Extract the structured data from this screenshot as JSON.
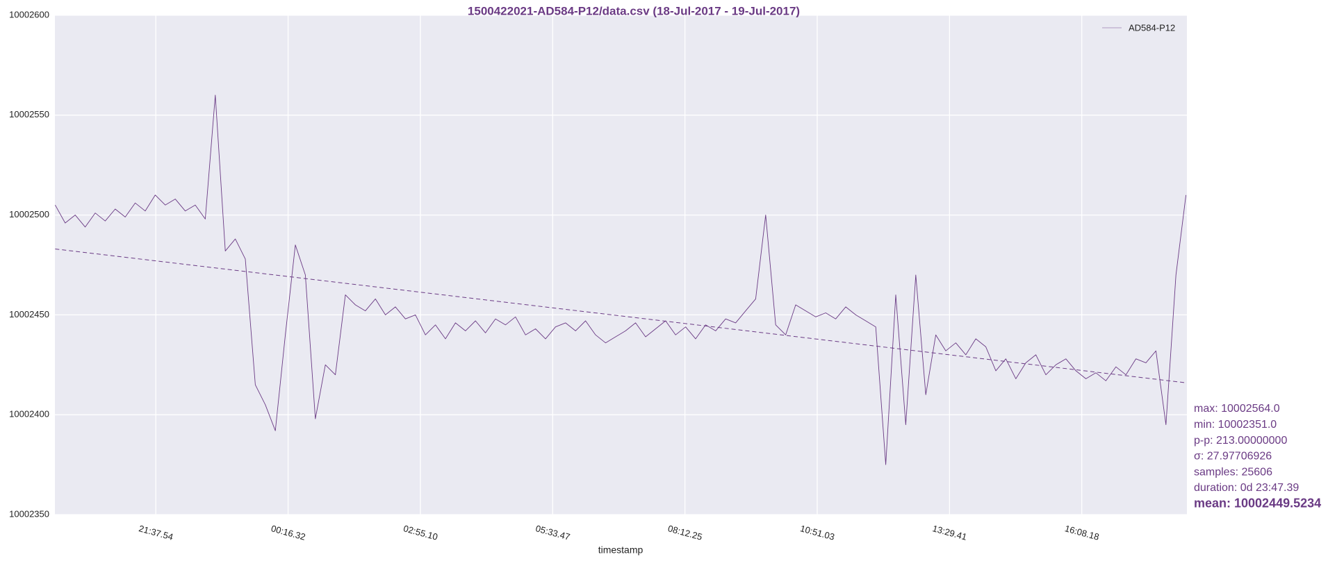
{
  "chart_data": {
    "type": "line",
    "title": "1500422021-AD584-P12/data.csv (18-Jul-2017 - 19-Jul-2017)",
    "x_label": "timestamp",
    "x": [
      19.62,
      19.82,
      20.02,
      20.22,
      20.42,
      20.62,
      20.82,
      21.02,
      21.22,
      21.42,
      21.62,
      21.82,
      22.02,
      22.22,
      22.42,
      22.62,
      22.82,
      23.02,
      23.22,
      23.42,
      23.62,
      23.82,
      24.02,
      24.22,
      24.42,
      24.62,
      24.82,
      25.02,
      25.22,
      25.42,
      25.62,
      25.82,
      26.02,
      26.22,
      26.42,
      26.62,
      26.82,
      27.02,
      27.22,
      27.42,
      27.62,
      27.82,
      28.02,
      28.22,
      28.42,
      28.62,
      28.82,
      29.02,
      29.22,
      29.42,
      29.62,
      29.82,
      30.02,
      30.22,
      30.42,
      30.62,
      30.82,
      31.02,
      31.22,
      31.42,
      31.62,
      31.82,
      32.02,
      32.22,
      32.42,
      32.62,
      32.82,
      33.02,
      33.22,
      33.42,
      33.62,
      33.82,
      34.02,
      34.22,
      34.42,
      34.62,
      34.82,
      35.02,
      35.22,
      35.42,
      35.62,
      35.82,
      36.02,
      36.22,
      36.42,
      36.62,
      36.82,
      37.02,
      37.22,
      37.42,
      37.62,
      37.82,
      38.02,
      38.22,
      38.42,
      38.62,
      38.82,
      39.02,
      39.22,
      39.42,
      39.62,
      39.82,
      40.02,
      40.22,
      40.42,
      40.62,
      40.82,
      41.02,
      41.22,
      41.42,
      41.62,
      41.82,
      42.02,
      42.22
    ],
    "series": [
      {
        "name": "AD584-P12",
        "color": "#6a3a84",
        "values": [
          10002505,
          10002496,
          10002500,
          10002494,
          10002501,
          10002497,
          10002503,
          10002499,
          10002506,
          10002502,
          10002510,
          10002505,
          10002508,
          10002502,
          10002505,
          10002498,
          10002560,
          10002482,
          10002488,
          10002478,
          10002415,
          10002405,
          10002392,
          10002440,
          10002485,
          10002470,
          10002398,
          10002425,
          10002420,
          10002460,
          10002455,
          10002452,
          10002458,
          10002450,
          10002454,
          10002448,
          10002450,
          10002440,
          10002445,
          10002438,
          10002446,
          10002442,
          10002447,
          10002441,
          10002448,
          10002445,
          10002449,
          10002440,
          10002443,
          10002438,
          10002444,
          10002446,
          10002442,
          10002447,
          10002440,
          10002436,
          10002439,
          10002442,
          10002446,
          10002439,
          10002443,
          10002447,
          10002440,
          10002444,
          10002438,
          10002445,
          10002442,
          10002448,
          10002446,
          10002452,
          10002458,
          10002500,
          10002445,
          10002440,
          10002455,
          10002452,
          10002449,
          10002451,
          10002448,
          10002454,
          10002450,
          10002447,
          10002444,
          10002375,
          10002460,
          10002395,
          10002470,
          10002410,
          10002440,
          10002432,
          10002436,
          10002430,
          10002438,
          10002434,
          10002422,
          10002428,
          10002418,
          10002426,
          10002430,
          10002420,
          10002425,
          10002428,
          10002422,
          10002418,
          10002421,
          10002417,
          10002424,
          10002420,
          10002428,
          10002426,
          10002432,
          10002395,
          10002470,
          10002510
        ]
      }
    ],
    "trend": {
      "x": [
        19.62,
        42.22
      ],
      "values": [
        10002483,
        10002416
      ],
      "color": "#6a3a84"
    },
    "xlim": [
      19.615,
      42.24
    ],
    "xticks": [
      {
        "value": 21.6317,
        "label": "21:37.54"
      },
      {
        "value": 24.2756,
        "label": "00:16.32"
      },
      {
        "value": 26.9194,
        "label": "02:55.10"
      },
      {
        "value": 29.5631,
        "label": "05:33.47"
      },
      {
        "value": 32.2069,
        "label": "08:12.25"
      },
      {
        "value": 34.8508,
        "label": "10:51.03"
      },
      {
        "value": 37.4947,
        "label": "13:29.41"
      },
      {
        "value": 40.1383,
        "label": "16:08.18"
      }
    ],
    "ylim": [
      10002350,
      10002600
    ],
    "yticks": [
      10002350,
      10002400,
      10002450,
      10002500,
      10002550,
      10002600
    ],
    "grid": true,
    "legend": "upper right",
    "stats": [
      "max: 10002564.0",
      "min: 10002351.0",
      "p-p: 213.00000000",
      "σ: 27.97706926",
      "samples: 25606",
      "duration: 0d 23:47.39",
      "mean: 10002449.5234"
    ]
  }
}
